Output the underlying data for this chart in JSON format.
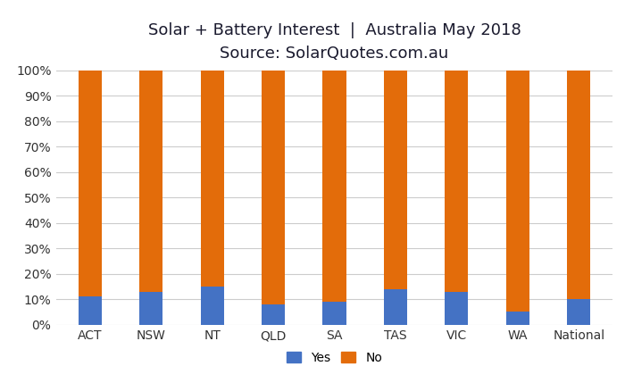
{
  "categories": [
    "ACT",
    "NSW",
    "NT",
    "QLD",
    "SA",
    "TAS",
    "VIC",
    "WA",
    "National"
  ],
  "yes_values": [
    11,
    13,
    15,
    8,
    9,
    14,
    13,
    5,
    10
  ],
  "no_values": [
    89,
    87,
    85,
    92,
    91,
    86,
    87,
    95,
    90
  ],
  "yes_color": "#4472C4",
  "no_color": "#E36C0A",
  "title_line1": "Solar + Battery Interest  |  Australia May 2018",
  "title_line2": "Source: SolarQuotes.com.au",
  "title_fontsize": 13,
  "subtitle_fontsize": 12,
  "ytick_labels": [
    "0%",
    "10%",
    "20%",
    "30%",
    "40%",
    "50%",
    "60%",
    "70%",
    "80%",
    "90%",
    "100%"
  ],
  "ytick_values": [
    0,
    10,
    20,
    30,
    40,
    50,
    60,
    70,
    80,
    90,
    100
  ],
  "legend_labels": [
    "Yes",
    "No"
  ],
  "background_color": "#ffffff",
  "grid_color": "#cccccc",
  "bar_width": 0.38,
  "tick_color": "#333333",
  "title_color": "#1a1a2e"
}
